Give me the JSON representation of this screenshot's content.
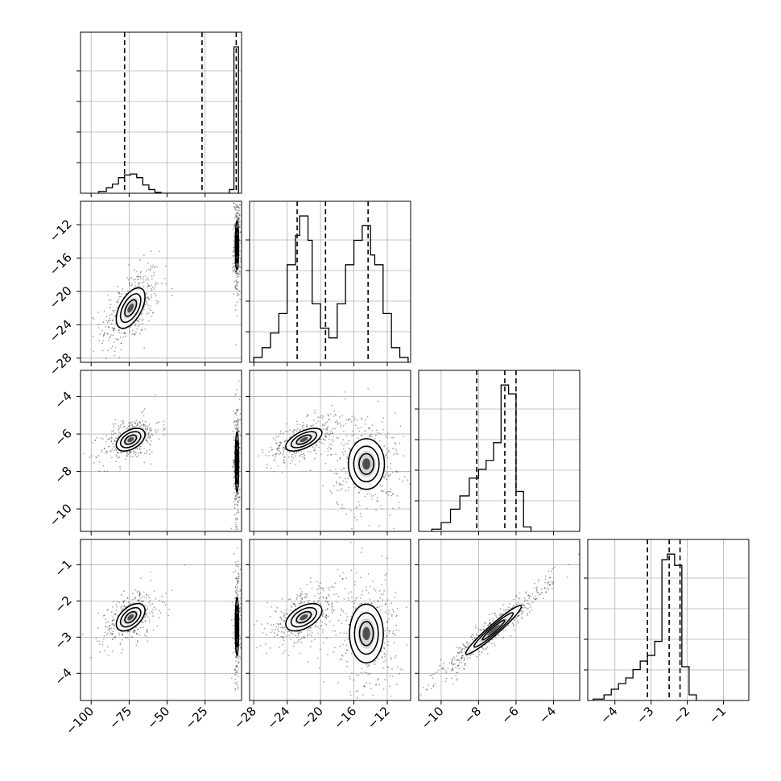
{
  "chart_data": {
    "type": "scatter",
    "kind": "corner-plot",
    "title": "",
    "grid": true,
    "parameters": [
      {
        "index": 0,
        "range": [
          -107,
          -1
        ],
        "ticks": [
          -100,
          -75,
          -50,
          -25
        ],
        "tick_labels": [
          "−100",
          "−75",
          "−50",
          "−25"
        ]
      },
      {
        "index": 1,
        "range": [
          -28.5,
          -9.2
        ],
        "ticks": [
          -28,
          -24,
          -20,
          -16,
          -12
        ],
        "tick_labels": [
          "−28",
          "−24",
          "−20",
          "−16",
          "−12"
        ]
      },
      {
        "index": 2,
        "range": [
          -11.2,
          -2.6
        ],
        "ticks": [
          -10,
          -8,
          -6,
          -4
        ],
        "tick_labels": [
          "−10",
          "−8",
          "−6",
          "−4"
        ]
      },
      {
        "index": 3,
        "range": [
          -4.75,
          -0.3
        ],
        "ticks": [
          -4,
          -3,
          -2,
          -1
        ],
        "tick_labels": [
          "−4",
          "−3",
          "−2",
          "−1"
        ]
      }
    ],
    "histograms": [
      {
        "param": 0,
        "quantiles": [
          -78,
          -27,
          -4.5
        ],
        "bins": [
          {
            "x0": -95,
            "x1": -90,
            "h": 0.01
          },
          {
            "x0": -90,
            "x1": -86,
            "h": 0.03
          },
          {
            "x0": -86,
            "x1": -82,
            "h": 0.05
          },
          {
            "x0": -82,
            "x1": -78,
            "h": 0.085
          },
          {
            "x0": -78,
            "x1": -74,
            "h": 0.1
          },
          {
            "x0": -74,
            "x1": -70,
            "h": 0.105
          },
          {
            "x0": -70,
            "x1": -66,
            "h": 0.085
          },
          {
            "x0": -66,
            "x1": -62,
            "h": 0.045
          },
          {
            "x0": -62,
            "x1": -58,
            "h": 0.02
          },
          {
            "x0": -58,
            "x1": -54,
            "h": 0.005
          },
          {
            "x0": -9,
            "x1": -6,
            "h": 0.02
          },
          {
            "x0": -6,
            "x1": -3,
            "h": 0.8
          }
        ]
      },
      {
        "param": 1,
        "quantiles": [
          -22.8,
          -19.4,
          -14.3
        ],
        "bins": [
          {
            "x0": -28,
            "x1": -27,
            "h": 0.01
          },
          {
            "x0": -27,
            "x1": -26,
            "h": 0.03
          },
          {
            "x0": -26,
            "x1": -25,
            "h": 0.06
          },
          {
            "x0": -25,
            "x1": -24,
            "h": 0.1
          },
          {
            "x0": -24,
            "x1": -23,
            "h": 0.2
          },
          {
            "x0": -23,
            "x1": -22.5,
            "h": 0.26
          },
          {
            "x0": -22.5,
            "x1": -21.5,
            "h": 0.3
          },
          {
            "x0": -21.5,
            "x1": -21,
            "h": 0.25
          },
          {
            "x0": -21,
            "x1": -20,
            "h": 0.12
          },
          {
            "x0": -20,
            "x1": -19,
            "h": 0.07
          },
          {
            "x0": -19,
            "x1": -18,
            "h": 0.05
          },
          {
            "x0": -18,
            "x1": -17,
            "h": 0.12
          },
          {
            "x0": -17,
            "x1": -16,
            "h": 0.2
          },
          {
            "x0": -16,
            "x1": -15,
            "h": 0.25
          },
          {
            "x0": -15,
            "x1": -14,
            "h": 0.28
          },
          {
            "x0": -14,
            "x1": -13.5,
            "h": 0.22
          },
          {
            "x0": -13.5,
            "x1": -12.5,
            "h": 0.2
          },
          {
            "x0": -12.5,
            "x1": -11.5,
            "h": 0.1
          },
          {
            "x0": -11.5,
            "x1": -10.5,
            "h": 0.03
          },
          {
            "x0": -10.5,
            "x1": -9.5,
            "h": 0.01
          }
        ]
      },
      {
        "param": 2,
        "quantiles": [
          -8.1,
          -6.6,
          -6.0
        ],
        "bins": [
          {
            "x0": -10.5,
            "x1": -10,
            "h": 0.005
          },
          {
            "x0": -10,
            "x1": -9.5,
            "h": 0.02
          },
          {
            "x0": -9.5,
            "x1": -9,
            "h": 0.05
          },
          {
            "x0": -9,
            "x1": -8.5,
            "h": 0.08
          },
          {
            "x0": -8.5,
            "x1": -8,
            "h": 0.12
          },
          {
            "x0": -8,
            "x1": -7.6,
            "h": 0.14
          },
          {
            "x0": -7.6,
            "x1": -7.2,
            "h": 0.16
          },
          {
            "x0": -7.2,
            "x1": -6.8,
            "h": 0.2
          },
          {
            "x0": -6.8,
            "x1": -6.4,
            "h": 0.33
          },
          {
            "x0": -6.4,
            "x1": -6,
            "h": 0.31
          },
          {
            "x0": -6,
            "x1": -5.6,
            "h": 0.09
          },
          {
            "x0": -5.6,
            "x1": -5.2,
            "h": 0.01
          }
        ]
      },
      {
        "param": 3,
        "quantiles": [
          -3.1,
          -2.5,
          -2.2
        ],
        "bins": [
          {
            "x0": -4.6,
            "x1": -4.3,
            "h": 0.005
          },
          {
            "x0": -4.3,
            "x1": -4.1,
            "h": 0.02
          },
          {
            "x0": -4.1,
            "x1": -3.9,
            "h": 0.04
          },
          {
            "x0": -3.9,
            "x1": -3.7,
            "h": 0.06
          },
          {
            "x0": -3.7,
            "x1": -3.5,
            "h": 0.08
          },
          {
            "x0": -3.5,
            "x1": -3.3,
            "h": 0.11
          },
          {
            "x0": -3.3,
            "x1": -3.1,
            "h": 0.14
          },
          {
            "x0": -3.1,
            "x1": -2.9,
            "h": 0.16
          },
          {
            "x0": -2.9,
            "x1": -2.7,
            "h": 0.21
          },
          {
            "x0": -2.7,
            "x1": -2.55,
            "h": 0.5
          },
          {
            "x0": -2.55,
            "x1": -2.35,
            "h": 0.52
          },
          {
            "x0": -2.35,
            "x1": -2.15,
            "h": 0.48
          },
          {
            "x0": -2.15,
            "x1": -1.95,
            "h": 0.12
          },
          {
            "x0": -1.95,
            "x1": -1.75,
            "h": 0.02
          }
        ]
      }
    ],
    "joint": [
      {
        "x_param": 0,
        "y_param": 1,
        "clusters": [
          {
            "cx": -74,
            "cy": -22,
            "sx": 7,
            "sy": 1.8,
            "rho": 0.55,
            "n": 420
          },
          {
            "cx": -4,
            "cy": -14.5,
            "sx": 0.8,
            "sy": 2.2,
            "rho": 0,
            "n": 260
          }
        ]
      },
      {
        "x_param": 0,
        "y_param": 2,
        "clusters": [
          {
            "cx": -74,
            "cy": -6.3,
            "sx": 7,
            "sy": 0.45,
            "rho": 0.45,
            "n": 380
          },
          {
            "cx": -4,
            "cy": -7.5,
            "sx": 0.8,
            "sy": 1.2,
            "rho": 0,
            "n": 260
          }
        ]
      },
      {
        "x_param": 1,
        "y_param": 2,
        "clusters": [
          {
            "cx": -22,
            "cy": -6.3,
            "sx": 1.6,
            "sy": 0.45,
            "rho": 0.6,
            "n": 380
          },
          {
            "cx": -14.5,
            "cy": -7.6,
            "sx": 1.6,
            "sy": 1.0,
            "rho": 0,
            "n": 380
          }
        ]
      },
      {
        "x_param": 0,
        "y_param": 3,
        "clusters": [
          {
            "cx": -74,
            "cy": -2.45,
            "sx": 7,
            "sy": 0.28,
            "rho": 0.5,
            "n": 380
          },
          {
            "cx": -4,
            "cy": -2.7,
            "sx": 0.8,
            "sy": 0.6,
            "rho": 0,
            "n": 260
          }
        ]
      },
      {
        "x_param": 1,
        "y_param": 3,
        "clusters": [
          {
            "cx": -22,
            "cy": -2.45,
            "sx": 1.6,
            "sy": 0.28,
            "rho": 0.5,
            "n": 380
          },
          {
            "cx": -14.5,
            "cy": -2.9,
            "sx": 1.5,
            "sy": 0.6,
            "rho": 0,
            "n": 380
          }
        ]
      },
      {
        "x_param": 2,
        "y_param": 3,
        "clusters": [
          {
            "cx": -7.2,
            "cy": -2.8,
            "sx": 1.1,
            "sy": 0.5,
            "rho": 0.96,
            "n": 520
          }
        ]
      }
    ]
  }
}
